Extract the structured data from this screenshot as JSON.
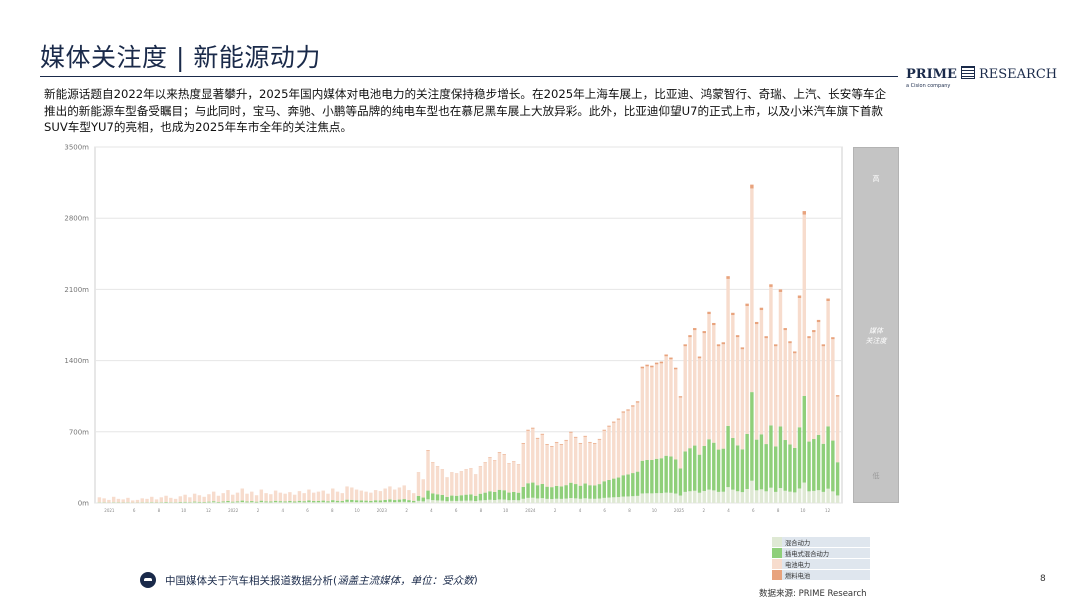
{
  "header": {
    "title": "媒体关注度 | 新能源动力",
    "brand_main": "PRIME",
    "brand_suffix": "RESEARCH",
    "brand_sub": "a Cision company"
  },
  "intro": "新能源话题自2022年以来热度显著攀升，2025年国内媒体对电池电力的关注度保持稳步增长。在2025年上海车展上，比亚迪、鸿蒙智行、奇瑞、上汽、长安等车企推出的新能源车型备受瞩目；与此同时，宝马、奔驰、小鹏等品牌的纯电车型也在慕尼黑车展上大放异彩。此外，比亚迪仰望U7的正式上市，以及小米汽车旗下首款SUV车型YU7的亮相，也成为2025年车市全年的关注焦点。",
  "right_panel": {
    "high": "高",
    "mid_line1": "媒体",
    "mid_line2": "关注度",
    "low": "低"
  },
  "legend": [
    {
      "label": "混合动力",
      "color": "#dfe9d4"
    },
    {
      "label": "插电式混合动力",
      "color": "#8fcf7a"
    },
    {
      "label": "电池电力",
      "color": "#f7dccd"
    },
    {
      "label": "燃料电池",
      "color": "#e8a37d"
    }
  ],
  "footer": {
    "note_main": "中国媒体关于汽车相关报道数据分析(",
    "note_italic": "涵盖主流媒体，单位：受众数",
    "note_close": ")",
    "source": "数据来源: PRIME Research",
    "page": "8"
  },
  "chart_data": {
    "type": "bar",
    "stacked": true,
    "ylim": [
      0,
      3500
    ],
    "y_ticks": [
      "0m",
      "700m",
      "1400m",
      "2100m",
      "2800m",
      "3500m"
    ],
    "grid": "horizontal",
    "colors": {
      "hybrid": "#dfe9d4",
      "phev": "#8fcf7a",
      "bev": "#f7dccd",
      "fcev": "#e8a37d"
    },
    "series": [
      {
        "name": "混合动力",
        "key": "hybrid"
      },
      {
        "name": "插电式混合动力",
        "key": "phev"
      },
      {
        "name": "电池电力",
        "key": "bev"
      },
      {
        "name": "燃料电池",
        "key": "fcev"
      }
    ],
    "totals": [
      55,
      45,
      30,
      60,
      40,
      35,
      50,
      25,
      30,
      45,
      40,
      60,
      35,
      55,
      70,
      50,
      40,
      65,
      80,
      55,
      90,
      75,
      60,
      85,
      110,
      70,
      95,
      125,
      80,
      100,
      140,
      90,
      110,
      75,
      130,
      95,
      85,
      120,
      100,
      90,
      105,
      80,
      115,
      95,
      130,
      100,
      110,
      120,
      90,
      140,
      110,
      95,
      160,
      150,
      130,
      120,
      110,
      100,
      125,
      115,
      140,
      160,
      130,
      150,
      170,
      125,
      95,
      300,
      230,
      520,
      400,
      360,
      330,
      250,
      300,
      290,
      310,
      330,
      340,
      280,
      360,
      400,
      450,
      420,
      500,
      480,
      390,
      410,
      380,
      590,
      720,
      740,
      640,
      680,
      580,
      560,
      600,
      580,
      620,
      700,
      650,
      590,
      660,
      600,
      590,
      630,
      720,
      760,
      800,
      830,
      900,
      920,
      960,
      1000,
      1340,
      1360,
      1350,
      1380,
      1390,
      1460,
      1430,
      1330,
      1050,
      1560,
      1650,
      1720,
      1440,
      1690,
      1880,
      1770,
      1560,
      1580,
      2230,
      1870,
      1650,
      1530,
      1960,
      3130,
      1780,
      1920,
      1640,
      2150,
      1560,
      2100,
      1720,
      1590,
      1490,
      2040,
      2870,
      1640,
      1700,
      1800,
      1560,
      2010,
      1630,
      1060
    ],
    "x_ticks": [
      "2021",
      "6",
      "8",
      "10",
      "12",
      "2022",
      "2",
      "4",
      "6",
      "8",
      "10",
      "2023",
      "2",
      "4",
      "6",
      "8",
      "10",
      "2024",
      "2",
      "4",
      "6",
      "8",
      "10",
      "2025",
      "2",
      "4",
      "6",
      "8",
      "10",
      "12"
    ]
  }
}
